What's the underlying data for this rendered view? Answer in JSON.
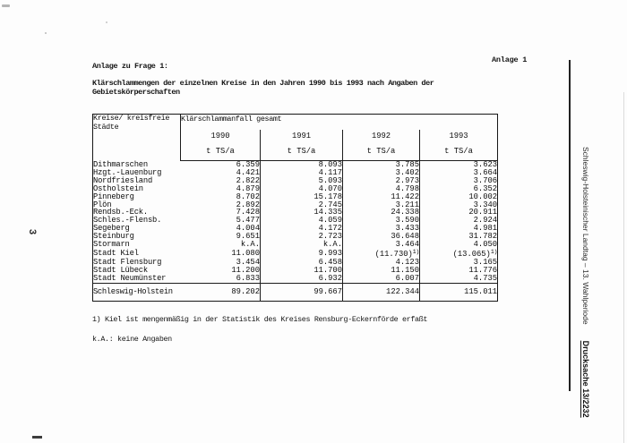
{
  "page_number": "3",
  "header": {
    "annex_right": "Anlage 1",
    "annex_line": "Anlage zu Frage 1:",
    "title_line1": "Klärschlammengen der einzelnen Kreise in den Jahren 1990 bis 1993 nach Angaben der",
    "title_line2": "Gebietskörperschaften"
  },
  "table": {
    "col_header_line1": "Kreise/ kreisfreie",
    "col_header_line2": "Städte",
    "group_header": "Klärschlammanfall gesamt",
    "years": [
      "1990",
      "1991",
      "1992",
      "1993"
    ],
    "unit": "t TS/a",
    "rows": [
      {
        "name": "Dithmarschen",
        "values": [
          "6.359",
          "8.093",
          "3.785",
          "3.623"
        ]
      },
      {
        "name": "Hzgt.-Lauenburg",
        "values": [
          "4.421",
          "4.117",
          "3.402",
          "3.664"
        ]
      },
      {
        "name": "Nordfriesland",
        "values": [
          "2.822",
          "5.093",
          "2.973",
          "3.706"
        ]
      },
      {
        "name": "Ostholstein",
        "values": [
          "4.879",
          "4.070",
          "4.798",
          "6.352"
        ]
      },
      {
        "name": "Pinneberg",
        "values": [
          "8.702",
          "15.178",
          "11.422",
          "10.002"
        ]
      },
      {
        "name": "Plön",
        "values": [
          "2.892",
          "2.745",
          "3.211",
          "3.340"
        ]
      },
      {
        "name": "Rendsb.-Eck.",
        "values": [
          "7.428",
          "14.335",
          "24.338",
          "20.911"
        ]
      },
      {
        "name": "Schles.-Flensb.",
        "values": [
          "5.477",
          "4.059",
          "3.590",
          "2.924"
        ]
      },
      {
        "name": "Segeberg",
        "values": [
          "4.004",
          "4.172",
          "3.433",
          "4.981"
        ]
      },
      {
        "name": "Steinburg",
        "values": [
          "9.651",
          "2.723",
          "36.648",
          "31.782"
        ]
      },
      {
        "name": "Stormarn",
        "values": [
          "k.A.",
          "k.A.",
          "3.464",
          "4.050"
        ]
      },
      {
        "name": "Stadt Kiel",
        "values": [
          "11.080",
          "9.993",
          "(11.730)1)",
          "(13.065)1)"
        ]
      },
      {
        "name": "Stadt Flensburg",
        "values": [
          "3.454",
          "6.458",
          "4.123",
          "3.165"
        ]
      },
      {
        "name": "Stadt Lübeck",
        "values": [
          "11.200",
          "11.700",
          "11.150",
          "11.776"
        ]
      },
      {
        "name": "Stadt Neumünster",
        "values": [
          "6.833",
          "6.932",
          "6.007",
          "4.735"
        ]
      }
    ],
    "total": {
      "label": "Schleswig-Holstein",
      "values": [
        "89.202",
        "99.667",
        "122.344",
        "115.011"
      ]
    }
  },
  "footnotes": {
    "note1": "1) Kiel ist mengenmäßig in der Statistik des Kreises Rensburg-Eckernförde erfaßt",
    "note2": "k.A.: keine Angaben"
  },
  "sidebar": {
    "caption": "Schleswig-Holsteinischer Landtag – 13. Wahlperiode",
    "doc_number": "Drucksache 13/2232"
  },
  "colors": {
    "ink": "#141414",
    "table_border": "#1c1c1c",
    "paper": "#fdfdfd"
  }
}
